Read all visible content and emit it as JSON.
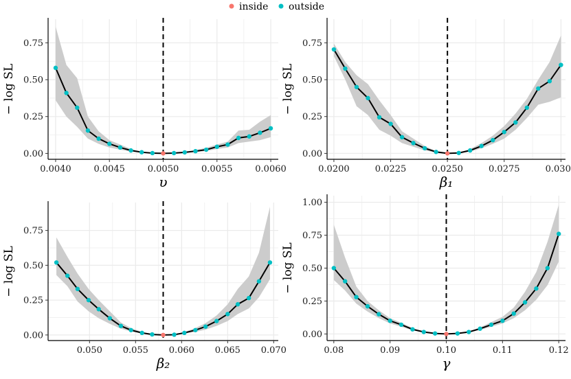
{
  "legend": {
    "inside_label": "inside",
    "outside_label": "outside",
    "inside_color": "#F8766D",
    "outside_color": "#00BFC4"
  },
  "colors": {
    "band": "#cccccc",
    "line": "#000000",
    "grid": "#ebebeb"
  },
  "chart_data": [
    {
      "type": "line",
      "xlabel": "υ",
      "ylabel": "− log SL",
      "xlim": [
        0.00393,
        0.00607
      ],
      "ylim": [
        -0.04,
        0.91
      ],
      "xticks": [
        0.004,
        0.0045,
        0.005,
        0.0055,
        0.006
      ],
      "xtick_labels": [
        "0.0040",
        "0.0045",
        "0.0050",
        "0.0055",
        "0.0060"
      ],
      "yticks": [
        0,
        0.25,
        0.5,
        0.75
      ],
      "ytick_labels": [
        "0.00",
        "0.25",
        "0.50",
        "0.75"
      ],
      "mle": 0.005,
      "x": [
        0.004,
        0.0041,
        0.0042,
        0.0043,
        0.0044,
        0.0045,
        0.0046,
        0.0047,
        0.0048,
        0.0049,
        0.005,
        0.0051,
        0.0052,
        0.0053,
        0.0054,
        0.0055,
        0.0056,
        0.0057,
        0.0058,
        0.0059,
        0.006
      ],
      "y": [
        0.58,
        0.41,
        0.31,
        0.155,
        0.1,
        0.065,
        0.04,
        0.02,
        0.008,
        0.002,
        0.0,
        0.002,
        0.007,
        0.015,
        0.025,
        0.045,
        0.06,
        0.105,
        0.115,
        0.14,
        0.17
      ],
      "lower": [
        0.36,
        0.25,
        0.18,
        0.1,
        0.065,
        0.04,
        0.025,
        0.012,
        0.004,
        0.001,
        0.0,
        0.001,
        0.004,
        0.009,
        0.016,
        0.03,
        0.04,
        0.07,
        0.08,
        0.09,
        0.11
      ],
      "upper": [
        0.86,
        0.6,
        0.51,
        0.25,
        0.15,
        0.09,
        0.06,
        0.03,
        0.013,
        0.004,
        0.0,
        0.004,
        0.011,
        0.023,
        0.038,
        0.06,
        0.08,
        0.155,
        0.16,
        0.215,
        0.26
      ],
      "status": [
        "outside",
        "outside",
        "outside",
        "outside",
        "outside",
        "outside",
        "outside",
        "outside",
        "outside",
        "outside",
        "inside",
        "outside",
        "outside",
        "outside",
        "outside",
        "outside",
        "outside",
        "outside",
        "outside",
        "outside",
        "outside"
      ]
    },
    {
      "type": "line",
      "xlabel": "β₁",
      "ylabel": "− log SL",
      "xlim": [
        0.0197,
        0.0302
      ],
      "ylim": [
        -0.04,
        0.91
      ],
      "xticks": [
        0.02,
        0.0225,
        0.025,
        0.0275,
        0.03
      ],
      "xtick_labels": [
        "0.0200",
        "0.0225",
        "0.0250",
        "0.0275",
        "0.0300"
      ],
      "yticks": [
        0,
        0.25,
        0.5,
        0.75
      ],
      "ytick_labels": [
        "0.00",
        "0.25",
        "0.50",
        "0.75"
      ],
      "mle": 0.025,
      "x": [
        0.02,
        0.0205,
        0.021,
        0.0215,
        0.022,
        0.0225,
        0.023,
        0.0235,
        0.024,
        0.0245,
        0.025,
        0.0255,
        0.026,
        0.0265,
        0.027,
        0.0275,
        0.028,
        0.0285,
        0.029,
        0.0295,
        0.03
      ],
      "y": [
        0.705,
        0.575,
        0.45,
        0.375,
        0.245,
        0.2,
        0.11,
        0.07,
        0.035,
        0.01,
        0.0,
        0.003,
        0.02,
        0.05,
        0.09,
        0.145,
        0.21,
        0.31,
        0.44,
        0.49,
        0.6
      ],
      "lower": [
        0.66,
        0.5,
        0.32,
        0.26,
        0.16,
        0.12,
        0.07,
        0.045,
        0.02,
        0.006,
        0.0,
        0.002,
        0.012,
        0.035,
        0.065,
        0.1,
        0.16,
        0.24,
        0.33,
        0.35,
        0.38
      ],
      "upper": [
        0.745,
        0.62,
        0.53,
        0.47,
        0.36,
        0.26,
        0.15,
        0.1,
        0.05,
        0.015,
        0.0,
        0.005,
        0.03,
        0.07,
        0.12,
        0.185,
        0.27,
        0.37,
        0.5,
        0.62,
        0.8
      ],
      "status": [
        "outside",
        "outside",
        "outside",
        "outside",
        "outside",
        "outside",
        "outside",
        "outside",
        "outside",
        "outside",
        "inside",
        "outside",
        "outside",
        "outside",
        "outside",
        "outside",
        "outside",
        "outside",
        "outside",
        "outside",
        "outside"
      ]
    },
    {
      "type": "line",
      "xlabel": "β₂",
      "ylabel": "− log SL",
      "xlim": [
        0.0455,
        0.0705
      ],
      "ylim": [
        -0.04,
        0.95
      ],
      "xticks": [
        0.05,
        0.055,
        0.06,
        0.065,
        0.07
      ],
      "xtick_labels": [
        "0.050",
        "0.055",
        "0.060",
        "0.065",
        "0.070"
      ],
      "yticks": [
        0,
        0.25,
        0.5,
        0.75
      ],
      "ytick_labels": [
        "0.00",
        "0.25",
        "0.50",
        "0.75"
      ],
      "mle": 0.058,
      "x": [
        0.0464,
        0.0476,
        0.0487,
        0.0499,
        0.051,
        0.0522,
        0.0534,
        0.0545,
        0.0557,
        0.0568,
        0.058,
        0.0592,
        0.0603,
        0.0615,
        0.0626,
        0.0638,
        0.065,
        0.0661,
        0.0673,
        0.0684,
        0.0696
      ],
      "y": [
        0.52,
        0.425,
        0.33,
        0.25,
        0.185,
        0.12,
        0.065,
        0.035,
        0.015,
        0.004,
        0.0,
        0.002,
        0.015,
        0.035,
        0.06,
        0.1,
        0.15,
        0.22,
        0.265,
        0.385,
        0.52
      ],
      "lower": [
        0.43,
        0.35,
        0.24,
        0.17,
        0.12,
        0.08,
        0.045,
        0.025,
        0.01,
        0.003,
        0.0,
        0.001,
        0.009,
        0.022,
        0.038,
        0.065,
        0.1,
        0.15,
        0.19,
        0.27,
        0.4
      ],
      "upper": [
        0.7,
        0.56,
        0.44,
        0.33,
        0.25,
        0.17,
        0.09,
        0.05,
        0.022,
        0.006,
        0.0,
        0.003,
        0.021,
        0.05,
        0.085,
        0.14,
        0.22,
        0.33,
        0.42,
        0.59,
        0.92
      ],
      "status": [
        "outside",
        "outside",
        "outside",
        "outside",
        "outside",
        "outside",
        "outside",
        "outside",
        "outside",
        "outside",
        "inside",
        "outside",
        "outside",
        "outside",
        "outside",
        "outside",
        "outside",
        "outside",
        "outside",
        "outside",
        "outside"
      ]
    },
    {
      "type": "line",
      "xlabel": "γ",
      "ylabel": "− log SL",
      "xlim": [
        0.0788,
        0.1212
      ],
      "ylim": [
        -0.05,
        1.05
      ],
      "xticks": [
        0.08,
        0.09,
        0.1,
        0.11,
        0.12
      ],
      "xtick_labels": [
        "0.08",
        "0.09",
        "0.10",
        "0.11",
        "0.12"
      ],
      "yticks": [
        0,
        0.25,
        0.5,
        0.75,
        1.0
      ],
      "ytick_labels": [
        "0.00",
        "0.25",
        "0.50",
        "0.75",
        "1.00"
      ],
      "mle": 0.1,
      "x": [
        0.08,
        0.082,
        0.084,
        0.086,
        0.088,
        0.09,
        0.092,
        0.094,
        0.096,
        0.098,
        0.1,
        0.102,
        0.104,
        0.106,
        0.108,
        0.11,
        0.112,
        0.114,
        0.116,
        0.118,
        0.12
      ],
      "y": [
        0.5,
        0.4,
        0.28,
        0.21,
        0.15,
        0.1,
        0.07,
        0.035,
        0.015,
        0.004,
        0.0,
        0.004,
        0.015,
        0.04,
        0.07,
        0.1,
        0.155,
        0.24,
        0.345,
        0.5,
        0.76
      ],
      "lower": [
        0.41,
        0.33,
        0.23,
        0.17,
        0.12,
        0.08,
        0.055,
        0.027,
        0.011,
        0.003,
        0.0,
        0.003,
        0.011,
        0.03,
        0.055,
        0.08,
        0.12,
        0.18,
        0.26,
        0.37,
        0.55
      ],
      "upper": [
        0.83,
        0.58,
        0.36,
        0.25,
        0.18,
        0.12,
        0.085,
        0.045,
        0.02,
        0.006,
        0.0,
        0.006,
        0.02,
        0.05,
        0.09,
        0.13,
        0.2,
        0.32,
        0.47,
        0.7,
        0.98
      ],
      "status": [
        "outside",
        "outside",
        "outside",
        "outside",
        "outside",
        "outside",
        "outside",
        "outside",
        "outside",
        "outside",
        "inside",
        "outside",
        "outside",
        "outside",
        "outside",
        "outside",
        "outside",
        "outside",
        "outside",
        "outside",
        "outside"
      ]
    }
  ]
}
